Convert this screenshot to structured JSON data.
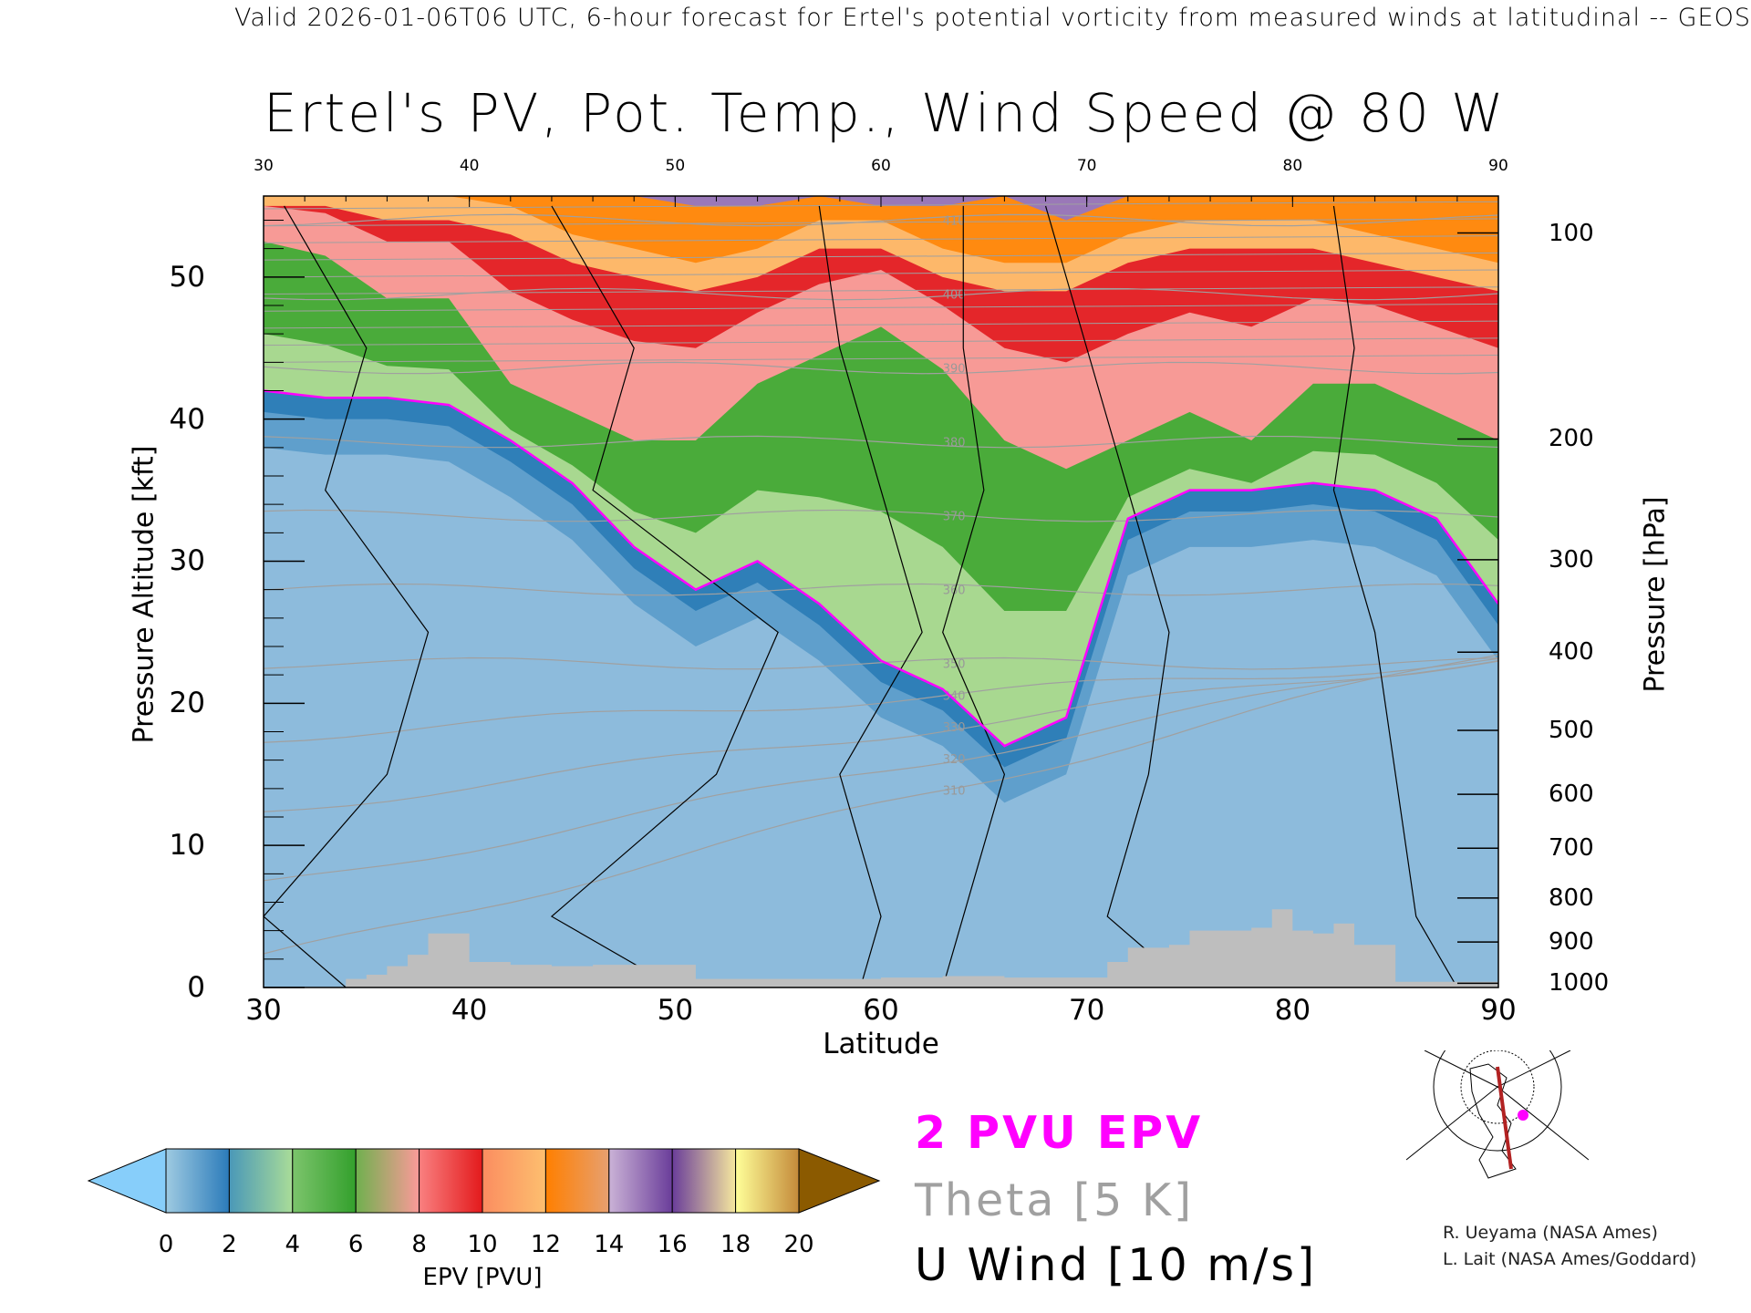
{
  "header": {
    "top_title": "Valid 2026-01-06T06 UTC, 6-hour forecast for Ertel's potential vorticity from measured winds at latitudinal -- GEOS",
    "main_title": "Ertel's PV, Pot. Temp., Wind Speed @ 80 W"
  },
  "chart_data": {
    "type": "heatmap",
    "title": "Ertel's PV, Pot. Temp., Wind Speed @ 80 W",
    "xlabel": "Latitude",
    "ylabel": "Pressure Altitude [kft]",
    "y2label": "Pressure [hPa]",
    "xlim": [
      30,
      90
    ],
    "ylim": [
      0,
      55.7
    ],
    "x_ticks": [
      "30",
      "40",
      "50",
      "60",
      "70",
      "80",
      "90"
    ],
    "top_ticks": [
      "30",
      "40",
      "50",
      "60",
      "70",
      "80",
      "90"
    ],
    "y_ticks": [
      "0",
      "10",
      "20",
      "30",
      "40",
      "50"
    ],
    "pressure_ticks": [
      {
        "label": "100",
        "kft": 53.1
      },
      {
        "label": "200",
        "kft": 38.6
      },
      {
        "label": "300",
        "kft": 30.1
      },
      {
        "label": "400",
        "kft": 23.6
      },
      {
        "label": "500",
        "kft": 18.1
      },
      {
        "label": "600",
        "kft": 13.6
      },
      {
        "label": "700",
        "kft": 9.8
      },
      {
        "label": "800",
        "kft": 6.3
      },
      {
        "label": "900",
        "kft": 3.2
      },
      {
        "label": "1000",
        "kft": 0.3
      }
    ],
    "latitudes": [
      30,
      33,
      36,
      39,
      42,
      45,
      48,
      51,
      54,
      57,
      60,
      63,
      66,
      69,
      72,
      75,
      78,
      81,
      84,
      87,
      90
    ],
    "epv_boundaries_kft": {
      "pvu2_tropopause": [
        42,
        41.5,
        41.5,
        41,
        38.5,
        35.5,
        31,
        28,
        30,
        27,
        23,
        21,
        17,
        19,
        33,
        35,
        35,
        35.5,
        35,
        33,
        27
      ],
      "pvu6": [
        54,
        53,
        50,
        50,
        44,
        42,
        40,
        40,
        44,
        46,
        48,
        45,
        40,
        38,
        40,
        42,
        40,
        44,
        44,
        42,
        40
      ],
      "pvu10": [
        56,
        56,
        55,
        55,
        54,
        52,
        51,
        50,
        51,
        53,
        53,
        51,
        50,
        50,
        52,
        53,
        53,
        53,
        52,
        51,
        50
      ],
      "pvu14": [
        58,
        58,
        58,
        58,
        58,
        58,
        56,
        55,
        55,
        56,
        55,
        55,
        56,
        54,
        56,
        58,
        56,
        57,
        57,
        56,
        56
      ]
    },
    "terrain": {
      "latitudes": [
        30,
        34,
        35,
        36,
        37,
        38,
        40,
        42,
        44,
        46,
        48,
        50,
        51,
        54,
        57,
        60,
        63,
        66,
        69,
        71,
        72,
        74,
        75,
        78,
        79,
        80,
        81,
        82,
        83,
        85,
        90
      ],
      "kft": [
        0,
        0.6,
        0.9,
        1.5,
        2.3,
        3.8,
        1.8,
        1.6,
        1.5,
        1.6,
        1.6,
        1.6,
        0.6,
        0.6,
        0.6,
        0.7,
        0.8,
        0.7,
        0.7,
        1.8,
        2.8,
        3.0,
        4.0,
        4.2,
        5.5,
        4.0,
        3.8,
        4.5,
        3.0,
        0.4,
        0.3
      ]
    },
    "theta_labels": [
      "310",
      "320",
      "330",
      "340",
      "350",
      "360",
      "370",
      "380",
      "390",
      "400",
      "410"
    ],
    "colorbar": {
      "label": "EPV [PVU]",
      "ticks": [
        "0",
        "2",
        "4",
        "6",
        "8",
        "10",
        "12",
        "14",
        "16",
        "18",
        "20"
      ],
      "under_color": "#87cefa",
      "over_color": "#8b5a00",
      "segments": [
        [
          "#9ecae1",
          "#2b7bba"
        ],
        [
          "#4a98b8",
          "#a9dc98"
        ],
        [
          "#7cc46c",
          "#33a02c"
        ],
        [
          "#6fb04e",
          "#fb9a99"
        ],
        [
          "#f98080",
          "#e31a1c"
        ],
        [
          "#fb8d60",
          "#fdbf6f"
        ],
        [
          "#ff7f00",
          "#e7a070"
        ],
        [
          "#cab2d6",
          "#6a3d9a"
        ],
        [
          "#6a3d9a",
          "#f5e79e"
        ],
        [
          "#ffff99",
          "#c48a3a"
        ]
      ]
    }
  },
  "legend": {
    "pvu_line": "2 PVU EPV",
    "theta": "Theta [5 K]",
    "wind": "U Wind [10 m/s]",
    "pvu_color": "#ff00ff",
    "theta_color": "#a0a0a0"
  },
  "credits": {
    "line1": "R. Ueyama (NASA Ames)",
    "line2": "L. Lait (NASA Ames/Goddard)"
  }
}
